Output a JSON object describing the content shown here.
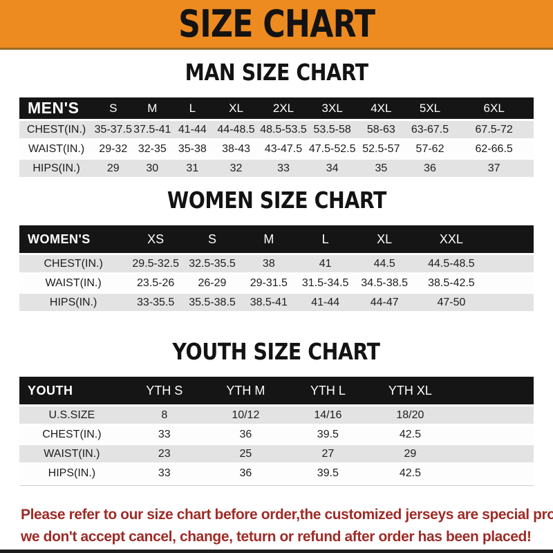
{
  "banner": {
    "title": "SIZE CHART",
    "bg_color": "#ed8b21",
    "text_color": "#131313"
  },
  "sections": [
    {
      "heading": "MAN SIZE CHART",
      "corner": "MEN'S",
      "columns": [
        "S",
        "M",
        "L",
        "XL",
        "2XL",
        "3XL",
        "4XL",
        "5XL",
        "6XL"
      ],
      "rows": [
        {
          "label": "CHEST(IN.)",
          "values": [
            "35-37.5",
            "37.5-41",
            "41-44",
            "44-48.5",
            "48.5-53.5",
            "53.5-58",
            "58-63",
            "63-67.5",
            "67.5-72"
          ]
        },
        {
          "label": "WAIST(IN.)",
          "values": [
            "29-32",
            "32-35",
            "35-38",
            "38-43",
            "43-47.5",
            "47.5-52.5",
            "52.5-57",
            "57-62",
            "62-66.5"
          ]
        },
        {
          "label": "HIPS(IN.)",
          "values": [
            "29",
            "30",
            "31",
            "32",
            "33",
            "34",
            "35",
            "36",
            "37"
          ]
        }
      ]
    },
    {
      "heading": "WOMEN SIZE CHART",
      "corner": "WOMEN'S",
      "columns": [
        "XS",
        "S",
        "M",
        "L",
        "XL",
        "XXL"
      ],
      "rows": [
        {
          "label": "CHEST(IN.)",
          "values": [
            "29.5-32.5",
            "32.5-35.5",
            "38",
            "41",
            "44.5",
            "44.5-48.5"
          ]
        },
        {
          "label": "WAIST(IN.)",
          "values": [
            "23.5-26",
            "26-29",
            "29-31.5",
            "31.5-34.5",
            "34.5-38.5",
            "38.5-42.5"
          ]
        },
        {
          "label": "HIPS(IN.)",
          "values": [
            "33-35.5",
            "35.5-38.5",
            "38.5-41",
            "41-44",
            "44-47",
            "47-50"
          ]
        }
      ]
    },
    {
      "heading": "YOUTH SIZE CHART",
      "corner": "YOUTH",
      "columns": [
        "YTH S",
        "YTH M",
        "YTH L",
        "YTH XL"
      ],
      "rows": [
        {
          "label": "U.S.SIZE",
          "values": [
            "8",
            "10/12",
            "14/16",
            "18/20"
          ]
        },
        {
          "label": "CHEST(IN.)",
          "values": [
            "33",
            "36",
            "39.5",
            "42.5"
          ]
        },
        {
          "label": "WAIST(IN.)",
          "values": [
            "23",
            "25",
            "27",
            "29"
          ]
        },
        {
          "label": "HIPS(IN.)",
          "values": [
            "33",
            "36",
            "39.5",
            "42.5"
          ]
        }
      ]
    }
  ],
  "footer": {
    "line1": "Please refer to our size chart before order,the customized jerseys are special products,",
    "line2": "we don't accept cancel, change, teturn or refund after order has been placed!",
    "text_color": "#9e2b26"
  },
  "colors": {
    "header_bar": "#151515",
    "row_shade": "#e3e3e3",
    "banner_orange": "#ed8b21"
  }
}
